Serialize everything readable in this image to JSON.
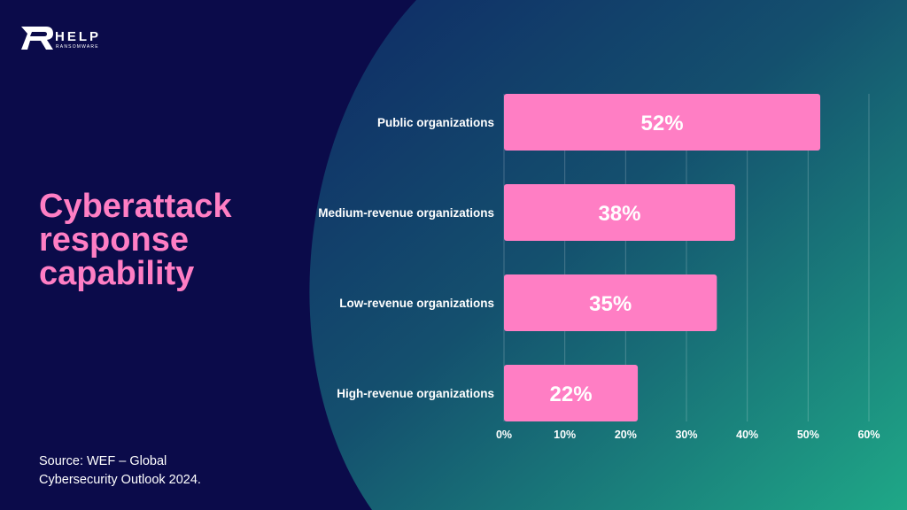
{
  "brand": {
    "name": "HELP",
    "tagline": "RANSOMWARE",
    "colors": {
      "navy": "#0b0b4a",
      "pink": "#ff7ec4",
      "teal": "#1fa887"
    }
  },
  "heading": {
    "title": "Cyberattack\nresponse\ncapability"
  },
  "footer": {
    "source": "Source: WEF – Global\nCybersecurity Outlook 2024."
  },
  "chart_data": {
    "type": "bar",
    "orientation": "horizontal",
    "categories": [
      "Public organizations",
      "Medium-revenue organizations",
      "Low-revenue organizations",
      "High-revenue organizations"
    ],
    "values": [
      52,
      38,
      35,
      22
    ],
    "data_labels": [
      "52%",
      "38%",
      "35%",
      "22%"
    ],
    "xlim": [
      0,
      60
    ],
    "x_ticks": [
      "0%",
      "10%",
      "20%",
      "30%",
      "40%",
      "50%",
      "60%"
    ],
    "grid": "vertical",
    "bar_color": "#ff7ec4",
    "label_color": "#ffffff"
  }
}
